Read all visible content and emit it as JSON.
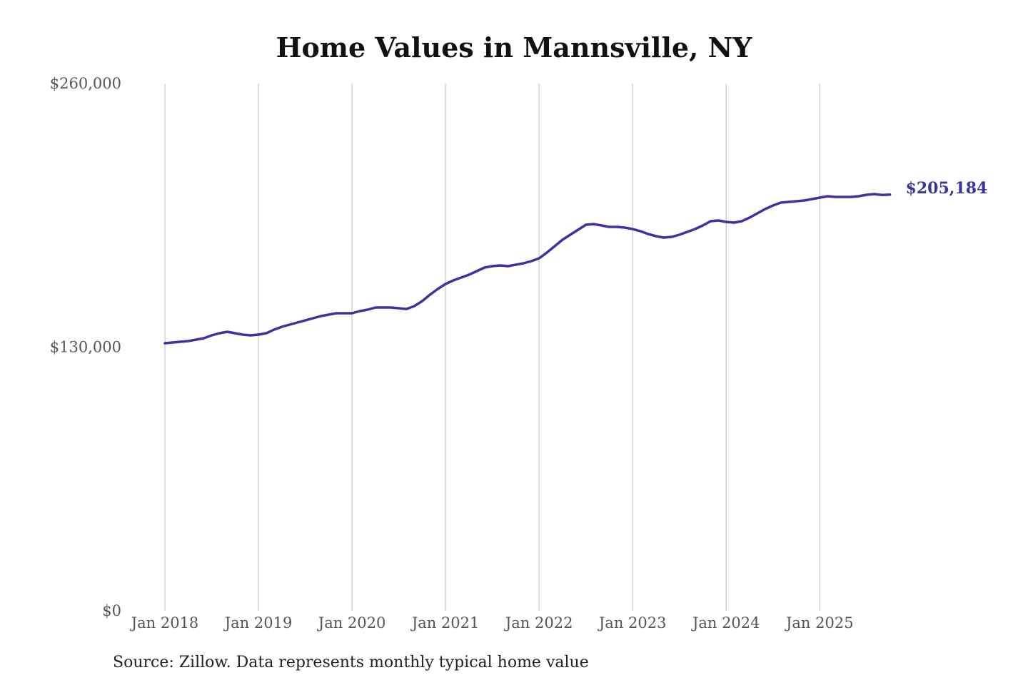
{
  "chart_data": {
    "type": "line",
    "title": "Home Values in Mannsville, NY",
    "xlabel": "",
    "ylabel": "",
    "ylim": [
      0,
      260000
    ],
    "y_ticks": [
      {
        "value": 0,
        "label": "$0"
      },
      {
        "value": 130000,
        "label": "$130,000"
      },
      {
        "value": 260000,
        "label": "$260,000"
      }
    ],
    "x_ticks": [
      {
        "date": "2018-01",
        "label": "Jan 2018"
      },
      {
        "date": "2019-01",
        "label": "Jan 2019"
      },
      {
        "date": "2020-01",
        "label": "Jan 2020"
      },
      {
        "date": "2021-01",
        "label": "Jan 2021"
      },
      {
        "date": "2022-01",
        "label": "Jan 2022"
      },
      {
        "date": "2023-01",
        "label": "Jan 2023"
      },
      {
        "date": "2024-01",
        "label": "Jan 2024"
      },
      {
        "date": "2025-01",
        "label": "Jan 2025"
      }
    ],
    "grid": "vertical lines at x ticks",
    "line_color": "#3a33a0",
    "start_date": "2018-01",
    "frequency": "monthly",
    "values": [
      131936,
      132288,
      132640,
      132990,
      133700,
      134400,
      135800,
      136860,
      137560,
      136860,
      136160,
      135800,
      136160,
      136860,
      138620,
      140030,
      141080,
      142140,
      143190,
      144250,
      145300,
      146010,
      146710,
      146710,
      146710,
      147770,
      148470,
      149530,
      149530,
      149530,
      149170,
      148820,
      150230,
      152690,
      155860,
      158670,
      161140,
      162890,
      164300,
      165710,
      167470,
      169230,
      169930,
      170290,
      169930,
      170640,
      171340,
      172400,
      173800,
      176620,
      179780,
      182950,
      185410,
      187880,
      190340,
      190690,
      189990,
      189280,
      189280,
      188930,
      188230,
      187170,
      185760,
      184710,
      184000,
      184360,
      185410,
      186820,
      188230,
      189990,
      192100,
      192450,
      191750,
      191400,
      192100,
      193860,
      195970,
      198080,
      199840,
      201250,
      201600,
      201950,
      202310,
      203010,
      203710,
      204410,
      204060,
      204060,
      204060,
      204410,
      205120,
      205470,
      205000,
      205184
    ],
    "end_label": "$205,184"
  },
  "source": "Source: Zillow. Data represents monthly typical home value"
}
